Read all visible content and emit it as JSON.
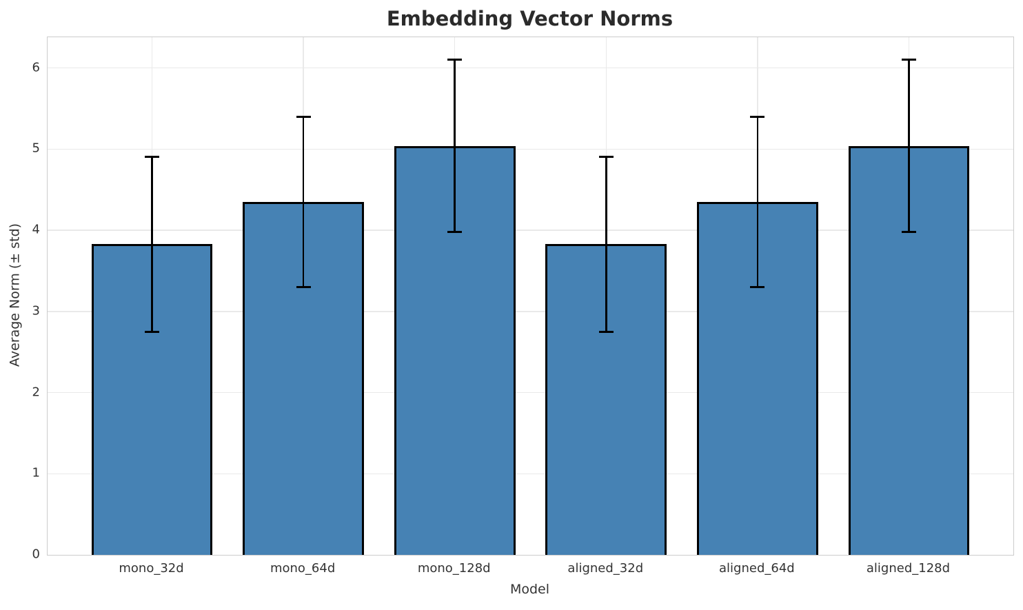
{
  "chart_data": {
    "type": "bar",
    "title": "Embedding Vector Norms",
    "xlabel": "Model",
    "ylabel": "Average Norm (± std)",
    "categories": [
      "mono_32d",
      "mono_64d",
      "mono_128d",
      "aligned_32d",
      "aligned_64d",
      "aligned_128d"
    ],
    "values": [
      3.83,
      4.35,
      5.04,
      3.83,
      4.35,
      5.04
    ],
    "errors": [
      1.08,
      1.05,
      1.06,
      1.08,
      1.05,
      1.06
    ],
    "yticks": [
      0,
      1,
      2,
      3,
      4,
      5,
      6
    ],
    "ylim": [
      0,
      6.38
    ],
    "xlim": [
      -0.69,
      5.69
    ],
    "bar_width_units": 0.8,
    "grid": "both",
    "legend": "none",
    "colors": {
      "bar_fill": "#4682b4",
      "bar_edge": "#000000",
      "error_bar": "#000000",
      "grid": "#e9e9e9",
      "spine": "#cccccc",
      "title_text": "#2b2b2b",
      "tick_text": "#333333"
    }
  }
}
